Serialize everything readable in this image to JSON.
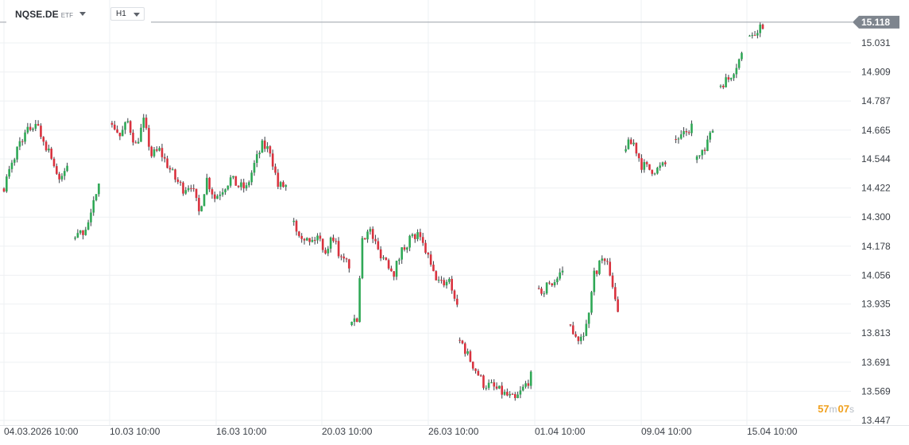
{
  "header": {
    "symbol": "NQSE.DE",
    "instrument_type": "ETF",
    "timeframe": "H1"
  },
  "countdown": {
    "minutes": "57",
    "minutes_unit": "m",
    "seconds": "07",
    "seconds_unit": "s"
  },
  "colors": {
    "up": "#2fa856",
    "down": "#d9323e",
    "grid": "#eef0f3",
    "axis_text": "#3a3f46",
    "price_tag": "#7e858e"
  },
  "chart_data": {
    "type": "candlestick",
    "series_name": "NQSE.DE",
    "yaxis": {
      "ticks": [
        15.031,
        14.909,
        14.787,
        14.665,
        14.544,
        14.422,
        14.3,
        14.178,
        14.056,
        13.935,
        13.813,
        13.691,
        13.569,
        13.447
      ],
      "tick_labels": [
        "15.031",
        "14.909",
        "14.787",
        "14.665",
        "14.544",
        "14.422",
        "14.300",
        "14.178",
        "14.056",
        "13.935",
        "13.813",
        "13.691",
        "13.569",
        "13.447"
      ],
      "position": "right"
    },
    "xaxis": {
      "tick_labels": [
        "04.03.2026 10:00",
        "10.03 10:00",
        "16.03 10:00",
        "20.03 10:00",
        "26.03 10:00",
        "01.04 10:00",
        "09.04 10:00",
        "15.04 10:00"
      ]
    },
    "last_price": 15.118,
    "last_price_label": "15.118",
    "grid": true,
    "anchors": [
      [
        0,
        14.43
      ],
      [
        3,
        14.52
      ],
      [
        6,
        14.62
      ],
      [
        9,
        14.66
      ],
      [
        12,
        14.7
      ],
      [
        15,
        14.62
      ],
      [
        18,
        14.56
      ],
      [
        21,
        14.44
      ],
      [
        24,
        14.52
      ],
      [
        null
      ],
      [
        27,
        14.21
      ],
      [
        30,
        14.24
      ],
      [
        33,
        14.3
      ],
      [
        36,
        14.46
      ],
      [
        null
      ],
      [
        41,
        14.7
      ],
      [
        44,
        14.64
      ],
      [
        47,
        14.7
      ],
      [
        50,
        14.6
      ],
      [
        53,
        14.7
      ],
      [
        56,
        14.56
      ],
      [
        59,
        14.58
      ],
      [
        62,
        14.52
      ],
      [
        65,
        14.46
      ],
      [
        68,
        14.42
      ],
      [
        71,
        14.44
      ],
      [
        74,
        14.32
      ],
      [
        77,
        14.46
      ],
      [
        80,
        14.38
      ],
      [
        83,
        14.42
      ],
      [
        86,
        14.46
      ],
      [
        89,
        14.43
      ],
      [
        92,
        14.42
      ],
      [
        95,
        14.52
      ],
      [
        98,
        14.6
      ],
      [
        101,
        14.58
      ],
      [
        104,
        14.43
      ],
      [
        107,
        14.43
      ],
      [
        null
      ],
      [
        110,
        14.27
      ],
      [
        113,
        14.23
      ],
      [
        116,
        14.19
      ],
      [
        119,
        14.22
      ],
      [
        122,
        14.16
      ],
      [
        125,
        14.22
      ],
      [
        128,
        14.12
      ],
      [
        131,
        14.1
      ],
      [
        null
      ],
      [
        132,
        13.84
      ],
      [
        134,
        13.87
      ],
      [
        136,
        14.22
      ],
      [
        139,
        14.24
      ],
      [
        142,
        14.16
      ],
      [
        145,
        14.12
      ],
      [
        148,
        14.07
      ],
      [
        151,
        14.16
      ],
      [
        154,
        14.21
      ],
      [
        157,
        14.22
      ],
      [
        160,
        14.16
      ],
      [
        163,
        14.06
      ],
      [
        166,
        14.02
      ],
      [
        169,
        14.04
      ],
      [
        172,
        13.93
      ],
      [
        null
      ],
      [
        173,
        13.79
      ],
      [
        176,
        13.72
      ],
      [
        179,
        13.66
      ],
      [
        182,
        13.6
      ],
      [
        185,
        13.59
      ],
      [
        188,
        13.57
      ],
      [
        191,
        13.55
      ],
      [
        194,
        13.53
      ],
      [
        197,
        13.58
      ],
      [
        200,
        13.63
      ],
      [
        null
      ],
      [
        203,
        13.98
      ],
      [
        206,
        14.01
      ],
      [
        209,
        14.03
      ],
      [
        212,
        14.06
      ],
      [
        null
      ],
      [
        215,
        13.85
      ],
      [
        218,
        13.79
      ],
      [
        221,
        13.84
      ],
      [
        224,
        14.06
      ],
      [
        227,
        14.13
      ],
      [
        230,
        14.07
      ],
      [
        233,
        13.9
      ],
      [
        null
      ],
      [
        236,
        14.6
      ],
      [
        239,
        14.61
      ],
      [
        242,
        14.52
      ],
      [
        245,
        14.5
      ],
      [
        248,
        14.5
      ],
      [
        251,
        14.52
      ],
      [
        null
      ],
      [
        255,
        14.63
      ],
      [
        258,
        14.64
      ],
      [
        261,
        14.68
      ],
      [
        null
      ],
      [
        263,
        14.55
      ],
      [
        266,
        14.57
      ],
      [
        269,
        14.68
      ],
      [
        null
      ],
      [
        272,
        14.86
      ],
      [
        275,
        14.88
      ],
      [
        278,
        14.94
      ],
      [
        280,
        14.98
      ],
      [
        null
      ],
      [
        283,
        15.07
      ],
      [
        286,
        15.09
      ],
      [
        288,
        15.11
      ]
    ],
    "candle_count": 289
  }
}
